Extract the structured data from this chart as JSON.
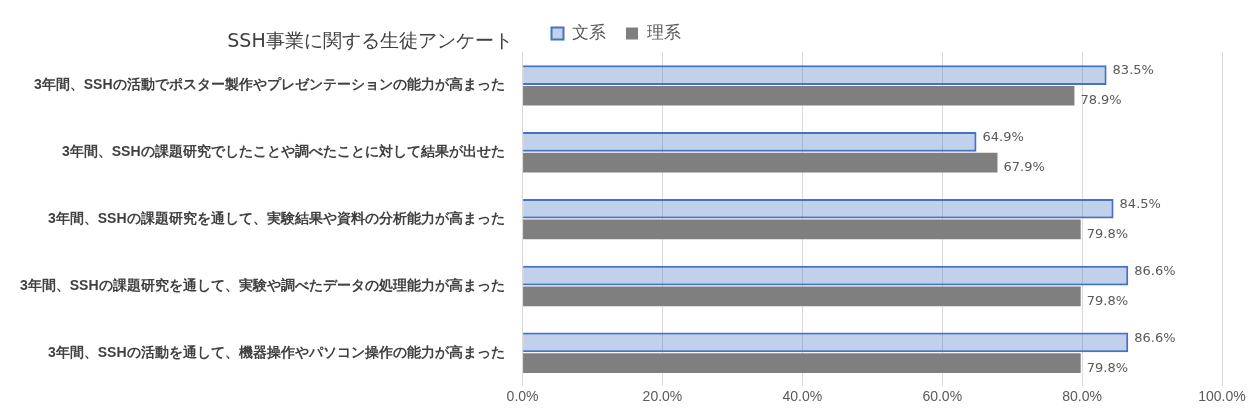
{
  "chart_data": {
    "type": "bar",
    "orientation": "horizontal",
    "title": "SSH事業に関する生徒アンケート",
    "categories": [
      "3年間、SSHの活動でポスター製作やプレゼンテーションの能力が高まった",
      "3年間、SSHの課題研究でしたことや調べたことに対して結果が出せた",
      "3年間、SSHの課題研究を通して、実験結果や資料の分析能力が高まった",
      "3年間、SSHの課題研究を通して、実験や調べたデータの処理能力が高まった",
      "3年間、SSHの活動を通して、機器操作やパソコン操作の能力が高まった"
    ],
    "series": [
      {
        "name": "文系",
        "color": "#4472c4",
        "values": [
          83.5,
          64.9,
          84.5,
          86.6,
          86.6
        ],
        "value_labels": [
          "83.5%",
          "64.9%",
          "84.5%",
          "86.6%",
          "86.6%"
        ]
      },
      {
        "name": "理系",
        "color": "#7f7f7f",
        "values": [
          78.9,
          67.9,
          79.8,
          79.8,
          79.8
        ],
        "value_labels": [
          "78.9%",
          "67.9%",
          "79.8%",
          "79.8%",
          "79.8%"
        ]
      }
    ],
    "xlim": [
      0,
      100
    ],
    "xticks": [
      {
        "value": 0,
        "label": "0.0%"
      },
      {
        "value": 20,
        "label": "20.0%"
      },
      {
        "value": 40,
        "label": "40.0%"
      },
      {
        "value": 60,
        "label": "60.0%"
      },
      {
        "value": 80,
        "label": "80.0%"
      },
      {
        "value": 100,
        "label": "100.0%"
      }
    ],
    "grid": "x",
    "legend": "top"
  }
}
